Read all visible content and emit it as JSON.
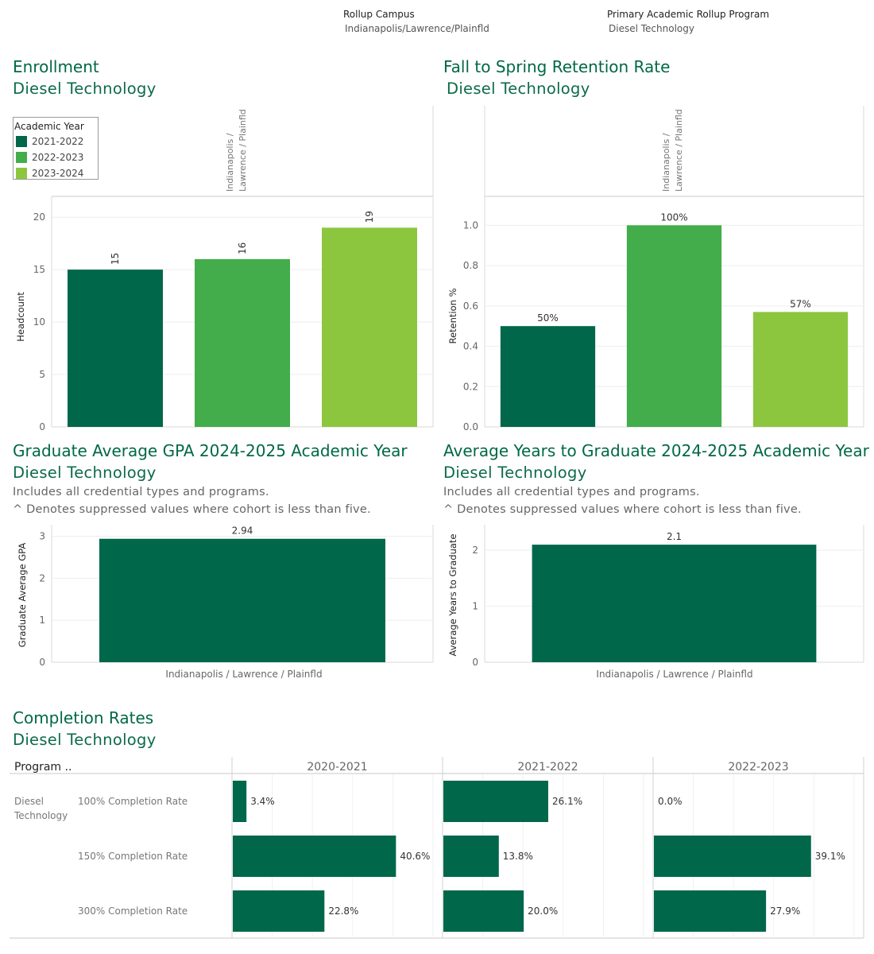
{
  "filters": {
    "campus_label": "Rollup Campus",
    "campus_value": "Indianapolis/Lawrence/Plainfld",
    "program_label": "Primary Academic Rollup Program",
    "program_value": "Diesel Technology"
  },
  "colors": {
    "dark": "#00674a",
    "mid": "#42ad4a",
    "light": "#8cc63f",
    "title": "#006845"
  },
  "enrollment": {
    "title": "Enrollment",
    "subtitle": "Diesel Technology",
    "legend_title": "Academic Year",
    "legend": [
      "2021-2022",
      "2022-2023",
      "2023-2024"
    ],
    "header": "Indianapolis / Lawrence / Plainfld"
  },
  "retention": {
    "title": "Fall to Spring Retention Rate",
    "subtitle": "Diesel Technology",
    "header": "Indianapolis / Lawrence / Plainfld"
  },
  "gpa": {
    "title": "Graduate Average GPA 2024-2025 Academic Year",
    "subtitle": "Diesel Technology",
    "note1": "Includes all credential types and programs.",
    "note2": "^ Denotes suppressed values where cohort is less than five."
  },
  "years": {
    "title": "Average Years to Graduate 2024-2025 Academic Year",
    "subtitle": "Diesel Technology",
    "note1": "Includes all credential types and programs.",
    "note2": "^ Denotes suppressed values where cohort is less than five."
  },
  "completion": {
    "title": "Completion Rates",
    "subtitle": "Diesel Technology",
    "program_header": "Program ..",
    "program_name": "Diesel Technology"
  },
  "chart_data": [
    {
      "type": "bar",
      "categories": [
        "2021-2022",
        "2022-2023",
        "2023-2024"
      ],
      "values": [
        15,
        16,
        19
      ],
      "labels": [
        "15",
        "16",
        "19"
      ],
      "ylabel": "Headcount",
      "yticks": [
        0,
        5,
        10,
        15,
        20
      ],
      "ylim": [
        0,
        21
      ],
      "legend": "top-left"
    },
    {
      "type": "bar",
      "categories": [
        "2021-2022",
        "2022-2023",
        "2023-2024"
      ],
      "values": [
        0.5,
        1.0,
        0.57
      ],
      "labels": [
        "50%",
        "100%",
        "57%"
      ],
      "ylabel": "Retention %",
      "yticks": [
        "0.0",
        "0.2",
        "0.4",
        "0.6",
        "0.8",
        "1.0"
      ],
      "ylim": [
        0,
        1.1
      ]
    },
    {
      "type": "bar",
      "categories": [
        "Indianapolis / Lawrence / Plainfld"
      ],
      "values": [
        2.94
      ],
      "labels": [
        "2.94"
      ],
      "ylabel": "Graduate Average GPA",
      "yticks": [
        0,
        1,
        2,
        3
      ],
      "ylim": [
        0,
        3.2
      ]
    },
    {
      "type": "bar",
      "categories": [
        "Indianapolis / Lawrence / Plainfld"
      ],
      "values": [
        2.1
      ],
      "labels": [
        "2.1"
      ],
      "ylabel": "Average Years to Graduate",
      "yticks": [
        0,
        1,
        2
      ],
      "ylim": [
        0,
        2.4
      ]
    },
    {
      "type": "bar",
      "orientation": "horizontal",
      "columns": [
        "2020-2021",
        "2021-2022",
        "2022-2023"
      ],
      "rows": [
        "100% Completion Rate",
        "150% Completion Rate",
        "300% Completion Rate"
      ],
      "values": [
        [
          3.4,
          26.1,
          0.0
        ],
        [
          40.6,
          13.8,
          39.1
        ],
        [
          22.8,
          20.0,
          27.9
        ]
      ],
      "labels": [
        [
          "3.4%",
          "26.1%",
          "0.0%"
        ],
        [
          "40.6%",
          "13.8%",
          "39.1%"
        ],
        [
          "22.8%",
          "20.0%",
          "27.9%"
        ]
      ],
      "xlim": [
        0,
        52
      ]
    }
  ]
}
